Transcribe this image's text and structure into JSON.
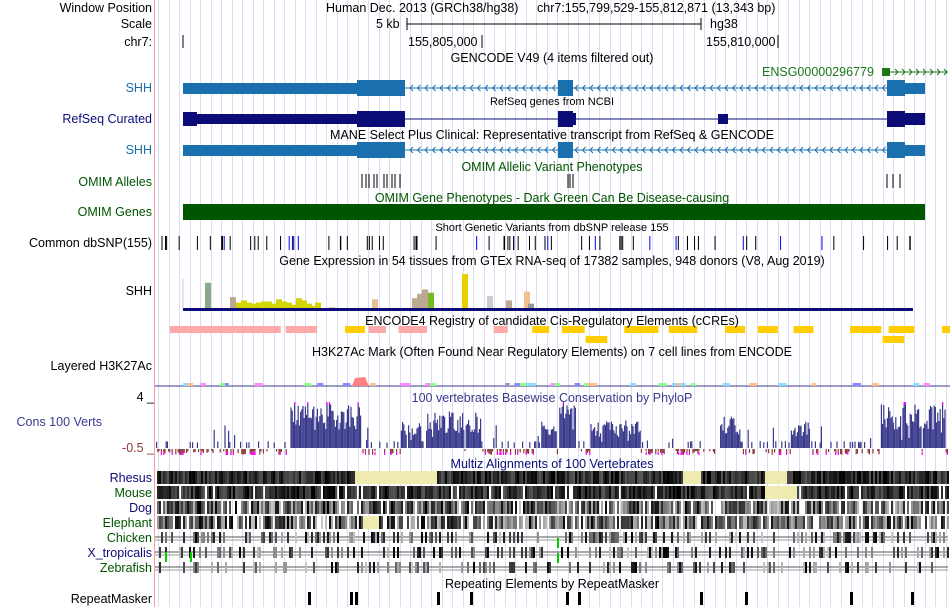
{
  "header": {
    "window_position_label": "Window Position",
    "assembly": "Human Dec. 2013 (GRCh38/hg38)",
    "position": "chr7:155,799,529-155,812,871 (13,343 bp)",
    "scale_label": "Scale",
    "scale_value": "5 kb",
    "scale_db": "hg38",
    "chrom_label": "chr7:",
    "ticks": [
      "155,805,000",
      "155,810,000"
    ]
  },
  "tracks": {
    "gencode": {
      "title": "GENCODE V49 (4 items filtered out)",
      "gene": "SHH",
      "other_gene": "ENSG00000296779"
    },
    "refseq": {
      "title": "RefSeq genes from NCBI",
      "label": "RefSeq Curated"
    },
    "mane": {
      "title": "MANE Select Plus Clinical: Representative transcript from RefSeq & GENCODE",
      "gene": "SHH"
    },
    "omim_alleles": {
      "title": "OMIM Allelic Variant Phenotypes",
      "label": "OMIM Alleles"
    },
    "omim_genes": {
      "title": "OMIM Gene Phenotypes - Dark Green Can Be Disease-causing",
      "label": "OMIM Genes"
    },
    "dbsnp": {
      "title": "Short Genetic Variants from dbSNP release 155",
      "label": "Common dbSNP(155)"
    },
    "gtex": {
      "title": "Gene Expression in 54 tissues from GTEx RNA-seq of 17382 samples, 948 donors (V8, Aug 2019)",
      "gene": "SHH"
    },
    "ccre": {
      "title": "ENCODE4 Registry of candidate Cis-Regulatory Elements (cCREs)"
    },
    "h3k27ac": {
      "title": "H3K27Ac Mark (Often Found Near Regulatory Elements) on 7 cell lines from ENCODE",
      "label": "Layered H3K27Ac"
    },
    "phylop": {
      "title": "100 vertebrates Basewise Conservation by PhyloP",
      "label": "Cons 100 Verts",
      "max": "4 _",
      "min": "-0.5 _"
    },
    "multiz": {
      "title": "Multiz Alignments of 100 Vertebrates",
      "species": [
        "Rhesus",
        "Mouse",
        "Dog",
        "Elephant",
        "Chicken",
        "X_tropicalis",
        "Zebrafish"
      ]
    },
    "repeatmasker": {
      "title": "Repeating Elements by RepeatMasker",
      "label": "RepeatMasker"
    }
  },
  "colors": {
    "gencode": "#1a6faf",
    "refseq": "#0c0c78",
    "omim": "#005500",
    "phylop": "#3a3a8c",
    "ccre_promoter": "#ff0000",
    "ccre_enhancer": "#ffcd00",
    "ccre_pls": "#ffa700",
    "ccre_ctcf": "#ffaaaa"
  }
}
